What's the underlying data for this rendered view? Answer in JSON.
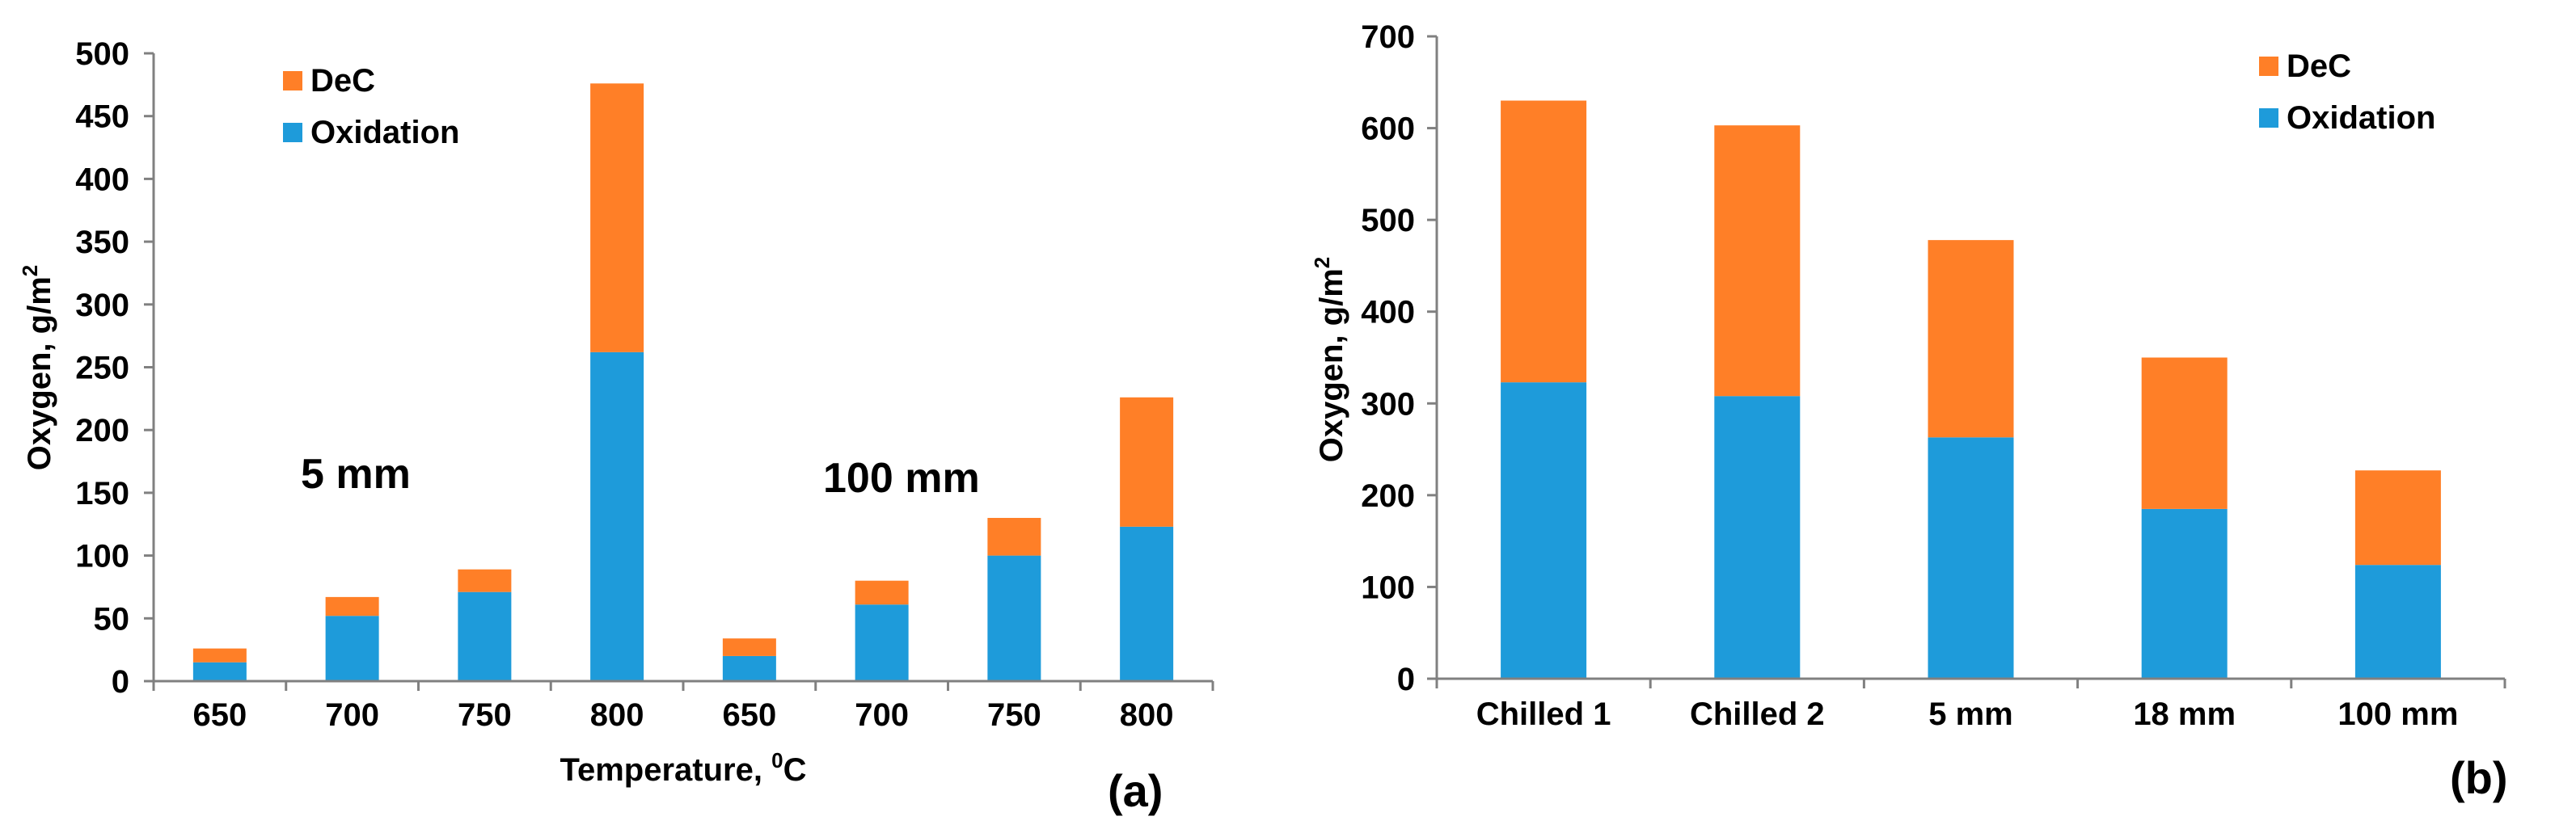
{
  "colors": {
    "dec": "#FF7F27",
    "oxidation": "#1E9BDA",
    "axis": "#808080"
  },
  "chart_data": [
    {
      "type": "bar",
      "stacked": true,
      "panel_label": "(a)",
      "categories": [
        "650",
        "700",
        "750",
        "800",
        "650",
        "700",
        "750",
        "800"
      ],
      "xlabel_main": "Temperature, ",
      "xlabel_sup": "0",
      "xlabel_tail": "C",
      "ylabel_main": "Oxygen, g/m",
      "ylabel_sup": "2",
      "ylim": [
        0,
        500
      ],
      "yticks": [
        0,
        50,
        100,
        150,
        200,
        250,
        300,
        350,
        400,
        450,
        500
      ],
      "grid": false,
      "legend": "top-left",
      "series": [
        {
          "name": "Oxidation",
          "values": [
            15,
            52,
            71,
            262,
            20,
            61,
            100,
            123
          ]
        },
        {
          "name": "DeC",
          "values": [
            11,
            15,
            18,
            214,
            14,
            19,
            30,
            103
          ]
        }
      ],
      "annotations": [
        {
          "text": "5 mm",
          "group": "left"
        },
        {
          "text": "100 mm",
          "group": "right"
        }
      ]
    },
    {
      "type": "bar",
      "stacked": true,
      "panel_label": "(b)",
      "categories": [
        "Chilled 1",
        "Chilled 2",
        "5 mm",
        "18 mm",
        "100 mm"
      ],
      "xlabel_main": "",
      "ylabel_main": "Oxygen, g/m",
      "ylabel_sup": "2",
      "ylim": [
        0,
        700
      ],
      "yticks": [
        0,
        100,
        200,
        300,
        400,
        500,
        600,
        700
      ],
      "grid": false,
      "legend": "top-right",
      "series": [
        {
          "name": "Oxidation",
          "values": [
            323,
            308,
            263,
            185,
            124
          ]
        },
        {
          "name": "DeC",
          "values": [
            307,
            295,
            215,
            165,
            103
          ]
        }
      ]
    }
  ]
}
